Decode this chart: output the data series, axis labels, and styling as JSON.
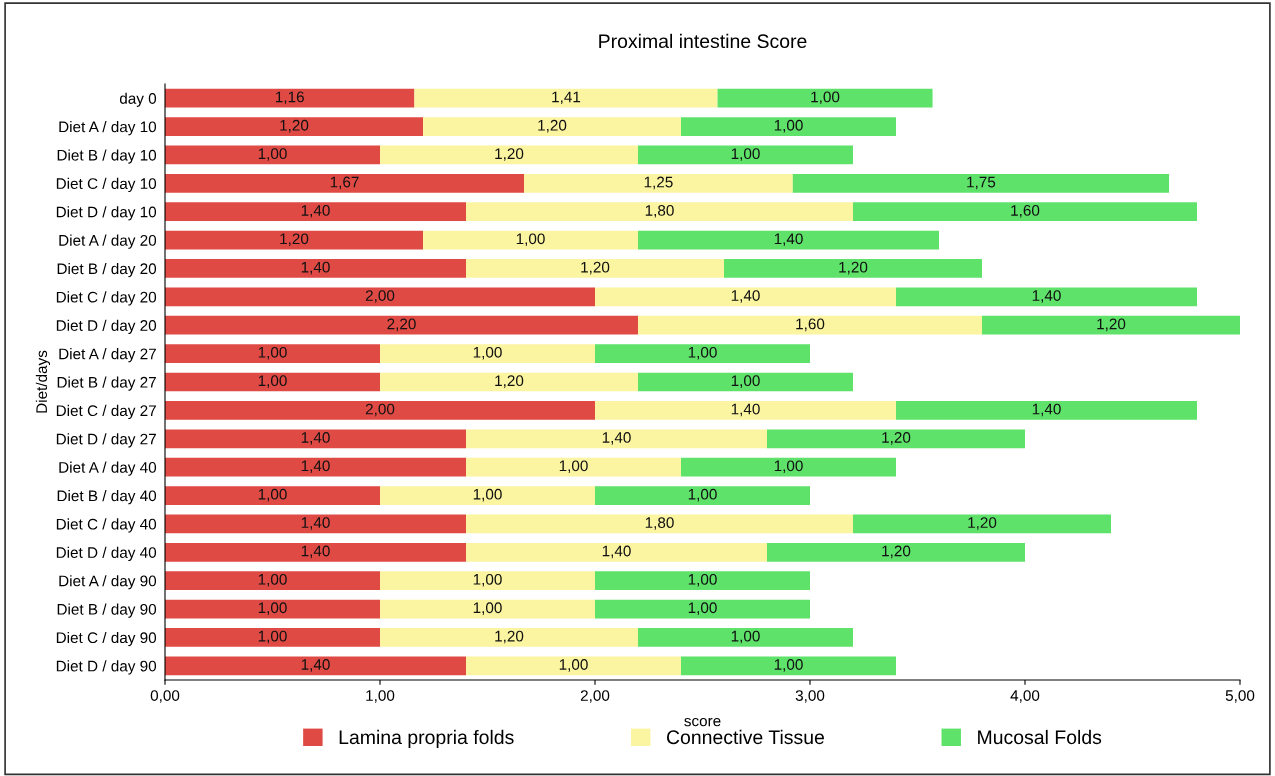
{
  "chart_data": {
    "type": "bar",
    "orientation": "horizontal",
    "stacked": true,
    "title": "Proximal intestine Score",
    "xlabel": "score",
    "ylabel": "Diet/days",
    "legend": "bottom",
    "categories": [
      "day 0",
      "Diet A / day 10",
      "Diet B / day 10",
      "Diet C / day 10",
      "Diet D / day 10",
      "Diet A / day 20",
      "Diet B / day 20",
      "Diet C / day 20",
      "Diet D / day 20",
      "Diet A / day 27",
      "Diet B / day 27",
      "Diet C / day 27",
      "Diet D / day 27",
      "Diet A / day 40",
      "Diet B / day 40",
      "Diet C / day 40",
      "Diet D / day 40",
      "Diet A / day 90",
      "Diet B / day 90",
      "Diet C / day 90",
      "Diet D / day 90"
    ],
    "xlim": [
      0,
      5
    ],
    "xticks": [
      {
        "value": 0,
        "label": "0,00"
      },
      {
        "value": 1,
        "label": "1,00"
      },
      {
        "value": 2,
        "label": "2,00"
      },
      {
        "value": 3,
        "label": "3,00"
      },
      {
        "value": 4,
        "label": "4,00"
      },
      {
        "value": 5,
        "label": "5,00"
      }
    ],
    "series": [
      {
        "name": "Lamina propria folds",
        "color": "#e04a45",
        "values": [
          1.16,
          1.2,
          1.0,
          1.67,
          1.4,
          1.2,
          1.4,
          2.0,
          2.2,
          1.0,
          1.0,
          2.0,
          1.4,
          1.4,
          1.0,
          1.4,
          1.4,
          1.0,
          1.0,
          1.0,
          1.4
        ],
        "value_labels": [
          "1,16",
          "1,20",
          "1,00",
          "1,67",
          "1,40",
          "1,20",
          "1,40",
          "2,00",
          "2,20",
          "1,00",
          "1,00",
          "2,00",
          "1,40",
          "1,40",
          "1,00",
          "1,40",
          "1,40",
          "1,00",
          "1,00",
          "1,00",
          "1,40"
        ]
      },
      {
        "name": "Connective Tissue",
        "color": "#fbf4a0",
        "values": [
          1.41,
          1.2,
          1.2,
          1.25,
          1.8,
          1.0,
          1.2,
          1.4,
          1.6,
          1.0,
          1.2,
          1.4,
          1.4,
          1.0,
          1.0,
          1.8,
          1.4,
          1.0,
          1.0,
          1.2,
          1.0
        ],
        "value_labels": [
          "1,41",
          "1,20",
          "1,20",
          "1,25",
          "1,80",
          "1,00",
          "1,20",
          "1,40",
          "1,60",
          "1,00",
          "1,20",
          "1,40",
          "1,40",
          "1,00",
          "1,00",
          "1,80",
          "1,40",
          "1,00",
          "1,00",
          "1,20",
          "1,00"
        ]
      },
      {
        "name": "Mucosal Folds",
        "color": "#5ee26a",
        "values": [
          1.0,
          1.0,
          1.0,
          1.75,
          1.6,
          1.4,
          1.2,
          1.4,
          1.2,
          1.0,
          1.0,
          1.4,
          1.2,
          1.0,
          1.0,
          1.2,
          1.2,
          1.0,
          1.0,
          1.0,
          1.0
        ],
        "value_labels": [
          "1,00",
          "1,00",
          "1,00",
          "1,75",
          "1,60",
          "1,40",
          "1,20",
          "1,40",
          "1,20",
          "1,00",
          "1,00",
          "1,40",
          "1,20",
          "1,00",
          "1,00",
          "1,20",
          "1,20",
          "1,00",
          "1,00",
          "1,00",
          "1,00"
        ]
      }
    ]
  }
}
